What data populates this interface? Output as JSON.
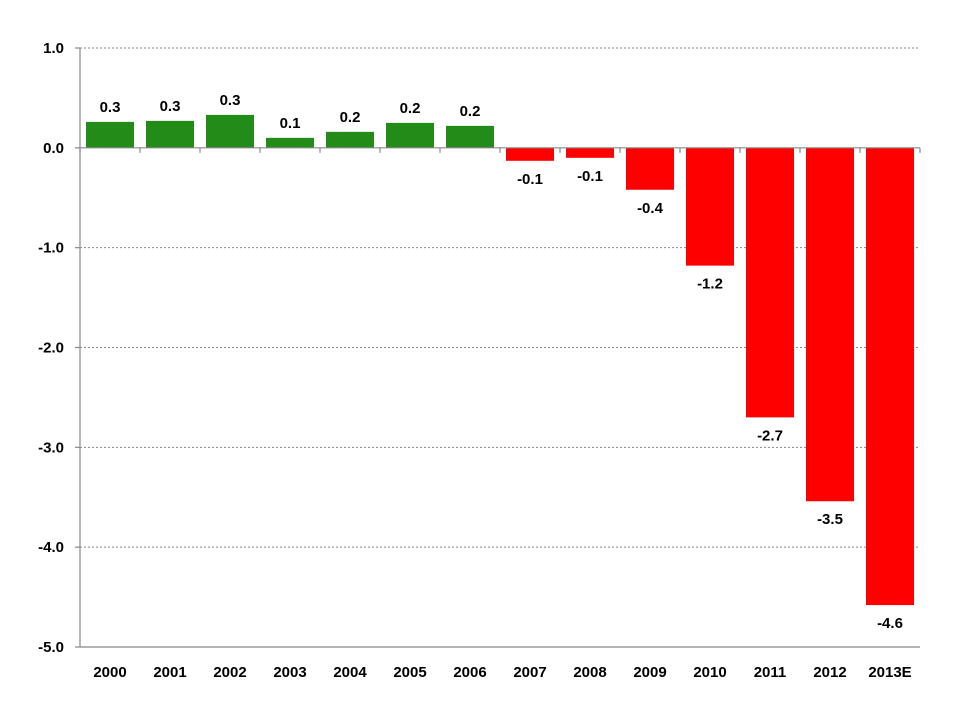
{
  "chart_data": {
    "type": "bar",
    "title": "",
    "xlabel": "",
    "ylabel": "",
    "categories": [
      "2000",
      "2001",
      "2002",
      "2003",
      "2004",
      "2005",
      "2006",
      "2007",
      "2008",
      "2009",
      "2010",
      "2011",
      "2012",
      "2013E"
    ],
    "values": [
      0.26,
      0.27,
      0.33,
      0.1,
      0.16,
      0.25,
      0.22,
      -0.13,
      -0.1,
      -0.42,
      -1.18,
      -2.7,
      -3.54,
      -4.58
    ],
    "data_labels": [
      "0.3",
      "0.3",
      "0.3",
      "0.1",
      "0.2",
      "0.2",
      "0.2",
      "-0.1",
      "-0.1",
      "-0.4",
      "-1.2",
      "-2.7",
      "-3.5",
      "-4.6"
    ],
    "ylim": [
      -5.0,
      1.0
    ],
    "yticks": [
      1.0,
      0.0,
      -1.0,
      -2.0,
      -3.0,
      -4.0,
      -5.0
    ],
    "ytick_labels": [
      "1.0",
      "0.0",
      "-1.0",
      "-2.0",
      "-3.0",
      "-4.0",
      "-5.0"
    ],
    "grid": true,
    "legend": "none",
    "colors": {
      "positive": "#238b17",
      "negative": "#ff0000"
    }
  }
}
